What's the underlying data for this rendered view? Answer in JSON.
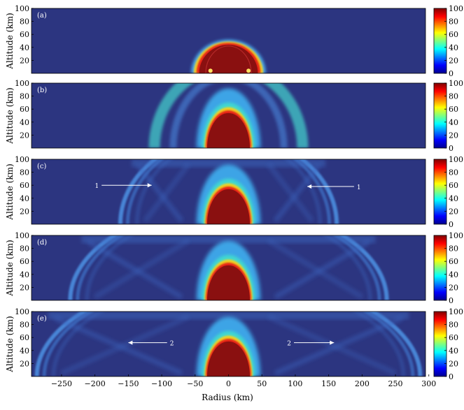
{
  "chart_data": {
    "type": "heatmap",
    "panels": [
      {
        "label": "(a)",
        "annotations": []
      },
      {
        "label": "(b)",
        "annotations": []
      },
      {
        "label": "(c)",
        "annotations": [
          {
            "text": "1",
            "from_x": -190,
            "to_x": -115,
            "y": 60
          },
          {
            "text": "1",
            "from_x": 188,
            "to_x": 118,
            "y": 58
          }
        ]
      },
      {
        "label": "(d)",
        "annotations": []
      },
      {
        "label": "(e)",
        "annotations": [
          {
            "text": "2",
            "from_x": -92,
            "to_x": -150,
            "y": 52
          },
          {
            "text": "2",
            "from_x": 98,
            "to_x": 158,
            "y": 52
          }
        ]
      }
    ],
    "xlabel": "Radius (km)",
    "ylabel": "Altitude (km)",
    "xlim": [
      -295,
      295
    ],
    "ylim": [
      0,
      100
    ],
    "x_ticks": [
      -250,
      -200,
      -150,
      -100,
      -50,
      0,
      50,
      100,
      150,
      200,
      250,
      300
    ],
    "y_ticks": [
      20,
      40,
      60,
      80,
      100
    ],
    "colorbar": {
      "min": 0,
      "max": 100,
      "ticks": [
        0,
        20,
        40,
        60,
        80,
        100
      ],
      "colormap": "jet"
    }
  }
}
